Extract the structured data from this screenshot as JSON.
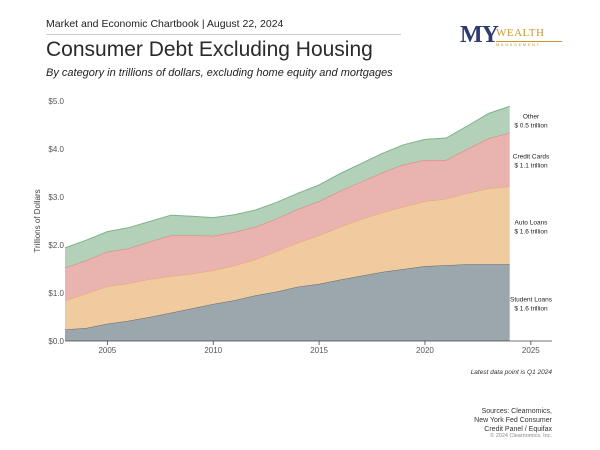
{
  "header": {
    "source_line": "Market and Economic Chartbook | August 22, 2024",
    "title": "Consumer Debt Excluding Housing",
    "subtitle": "By category in trillions of dollars, excluding home equity and mortgages"
  },
  "logo": {
    "my": "MY",
    "wealth": "WEALTH",
    "management": "MANAGEMENT"
  },
  "footer": {
    "note": "Latest data point is Q1 2024",
    "sources": [
      "Sources: Clearnomics,",
      "New York Fed Consumer",
      "Credit Panel / Equifax"
    ],
    "copyright": "© 2024 Clearnomics, Inc."
  },
  "colors": {
    "student_loans": "#9ba6ad",
    "student_loans_line": "#5e6a72",
    "auto_loans": "#f1cba0",
    "auto_loans_line": "#e8a86a",
    "credit_cards": "#e9b3b0",
    "credit_cards_line": "#df7f7c",
    "other": "#b3d1b8",
    "other_line": "#7fb38a"
  },
  "chart_data": {
    "type": "area",
    "stacked": true,
    "ylabel": "Trillions of Dollars",
    "ylim": [
      0,
      5
    ],
    "yticks": [
      "$0.0",
      "$1.0",
      "$2.0",
      "$3.0",
      "$4.0",
      "$5.0"
    ],
    "xlim": [
      2003,
      2026
    ],
    "xticks": [
      "2005",
      "2010",
      "2015",
      "2020",
      "2025"
    ],
    "x": [
      2003,
      2004,
      2005,
      2006,
      2007,
      2008,
      2009,
      2010,
      2011,
      2012,
      2013,
      2014,
      2015,
      2016,
      2017,
      2018,
      2019,
      2020,
      2021,
      2022,
      2023,
      2024
    ],
    "series": [
      {
        "name": "Student Loans",
        "annotation": [
          "Student Loans",
          "$ 1.6 trillion"
        ],
        "values": [
          0.24,
          0.27,
          0.36,
          0.42,
          0.5,
          0.59,
          0.68,
          0.77,
          0.85,
          0.95,
          1.03,
          1.13,
          1.19,
          1.28,
          1.36,
          1.44,
          1.5,
          1.56,
          1.58,
          1.6,
          1.6,
          1.6
        ]
      },
      {
        "name": "Auto Loans",
        "annotation": [
          "Auto Loans",
          "$ 1.6 trillion"
        ],
        "values": [
          0.6,
          0.72,
          0.78,
          0.78,
          0.79,
          0.76,
          0.72,
          0.7,
          0.72,
          0.75,
          0.84,
          0.92,
          1.01,
          1.1,
          1.18,
          1.24,
          1.3,
          1.35,
          1.38,
          1.48,
          1.58,
          1.62
        ]
      },
      {
        "name": "Credit Cards",
        "annotation": [
          "Credit Cards",
          "$ 1.1 trillion"
        ],
        "values": [
          0.69,
          0.69,
          0.72,
          0.73,
          0.78,
          0.85,
          0.8,
          0.72,
          0.7,
          0.68,
          0.68,
          0.7,
          0.71,
          0.75,
          0.78,
          0.83,
          0.88,
          0.86,
          0.81,
          0.92,
          1.04,
          1.12
        ]
      },
      {
        "name": "Other",
        "annotation": [
          "Other",
          "$ 0.5 trillion"
        ],
        "values": [
          0.41,
          0.42,
          0.42,
          0.43,
          0.42,
          0.42,
          0.4,
          0.38,
          0.36,
          0.35,
          0.34,
          0.33,
          0.34,
          0.36,
          0.38,
          0.4,
          0.41,
          0.43,
          0.46,
          0.48,
          0.52,
          0.55
        ]
      }
    ]
  }
}
